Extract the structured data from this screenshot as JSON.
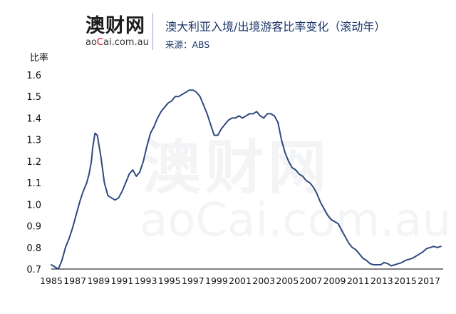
{
  "header": {
    "logo_cn": "澳财网",
    "logo_en_prefix": "ao",
    "logo_en_accent": "C",
    "logo_en_suffix": "ai.com.au",
    "title": "澳大利亚入境/出境游客比率变化（滚动年）",
    "source": "来源：ABS"
  },
  "watermark": {
    "cn": "澳财网",
    "en": "aoCai.com.au"
  },
  "colors": {
    "line": "#2f4a7e",
    "title": "#1c3669",
    "axis": "#000000"
  },
  "chart_data": {
    "type": "line",
    "title": "澳大利亚入境/出境游客比率变化（滚动年）",
    "ylabel": "比率",
    "xlabel": "",
    "xlim": [
      1985,
      2018.2
    ],
    "ylim": [
      0.7,
      1.6
    ],
    "yticks": [
      0.7,
      0.8,
      0.9,
      1.0,
      1.1,
      1.2,
      1.3,
      1.4,
      1.5,
      1.6
    ],
    "ytick_labels": [
      "0.7",
      "0.8",
      "0.9",
      "1.0",
      "1.1",
      "1.2",
      "1.3",
      "1.4",
      "1.5",
      "1.6"
    ],
    "xticks": [
      1985,
      1987,
      1989,
      1991,
      1993,
      1995,
      1997,
      1999,
      2001,
      2003,
      2005,
      2007,
      2009,
      2011,
      2013,
      2015,
      2017
    ],
    "xtick_labels": [
      "1985",
      "1987",
      "1989",
      "1991",
      "1993",
      "1995",
      "1997",
      "1999",
      "2001",
      "2003",
      "2005",
      "2007",
      "2009",
      "2011",
      "2013",
      "2015",
      "2017"
    ],
    "grid": false,
    "series": [
      {
        "x": [
          1985.0,
          1985.3,
          1985.6,
          1985.9,
          1986.2,
          1986.5,
          1986.8,
          1987.1,
          1987.4,
          1987.7,
          1988.0,
          1988.2,
          1988.4,
          1988.5,
          1988.7,
          1988.9,
          1989.2,
          1989.5,
          1989.8,
          1990.1,
          1990.4,
          1990.7,
          1991.0,
          1991.3,
          1991.6,
          1991.9,
          1992.2,
          1992.5,
          1992.8,
          1993.1,
          1993.4,
          1993.7,
          1994.0,
          1994.3,
          1994.6,
          1994.9,
          1995.2,
          1995.5,
          1995.8,
          1996.1,
          1996.4,
          1996.7,
          1997.0,
          1997.3,
          1997.6,
          1997.9,
          1998.2,
          1998.5,
          1998.8,
          1999.1,
          1999.4,
          1999.7,
          2000.0,
          2000.3,
          2000.6,
          2000.9,
          2001.2,
          2001.5,
          2001.8,
          2002.1,
          2002.4,
          2002.7,
          2003.0,
          2003.3,
          2003.6,
          2003.9,
          2004.2,
          2004.5,
          2004.8,
          2005.1,
          2005.4,
          2005.7,
          2006.0,
          2006.3,
          2006.6,
          2006.9,
          2007.2,
          2007.5,
          2007.8,
          2008.1,
          2008.4,
          2008.7,
          2009.0,
          2009.3,
          2009.6,
          2009.9,
          2010.2,
          2010.5,
          2010.8,
          2011.1,
          2011.4,
          2011.7,
          2012.0,
          2012.3,
          2012.6,
          2012.9,
          2013.2,
          2013.5,
          2013.8,
          2014.1,
          2014.4,
          2014.7,
          2015.0,
          2015.3,
          2015.6,
          2015.9,
          2016.2,
          2016.5,
          2016.8,
          2017.1,
          2017.4,
          2017.7,
          2018.0
        ],
        "values": [
          0.72,
          0.71,
          0.7,
          0.74,
          0.8,
          0.84,
          0.89,
          0.95,
          1.01,
          1.06,
          1.1,
          1.14,
          1.2,
          1.26,
          1.33,
          1.32,
          1.22,
          1.1,
          1.04,
          1.03,
          1.02,
          1.03,
          1.06,
          1.1,
          1.14,
          1.16,
          1.13,
          1.15,
          1.2,
          1.27,
          1.33,
          1.36,
          1.4,
          1.43,
          1.45,
          1.47,
          1.48,
          1.5,
          1.5,
          1.51,
          1.52,
          1.53,
          1.53,
          1.52,
          1.5,
          1.46,
          1.42,
          1.37,
          1.32,
          1.32,
          1.35,
          1.37,
          1.39,
          1.4,
          1.4,
          1.41,
          1.4,
          1.41,
          1.42,
          1.42,
          1.43,
          1.41,
          1.4,
          1.42,
          1.42,
          1.41,
          1.38,
          1.3,
          1.24,
          1.2,
          1.17,
          1.16,
          1.14,
          1.13,
          1.11,
          1.1,
          1.08,
          1.05,
          1.01,
          0.98,
          0.95,
          0.93,
          0.92,
          0.91,
          0.88,
          0.85,
          0.82,
          0.8,
          0.79,
          0.77,
          0.75,
          0.74,
          0.725,
          0.72,
          0.72,
          0.72,
          0.73,
          0.725,
          0.715,
          0.72,
          0.725,
          0.73,
          0.74,
          0.745,
          0.75,
          0.76,
          0.77,
          0.78,
          0.795,
          0.8,
          0.805,
          0.8,
          0.805
        ]
      }
    ]
  }
}
